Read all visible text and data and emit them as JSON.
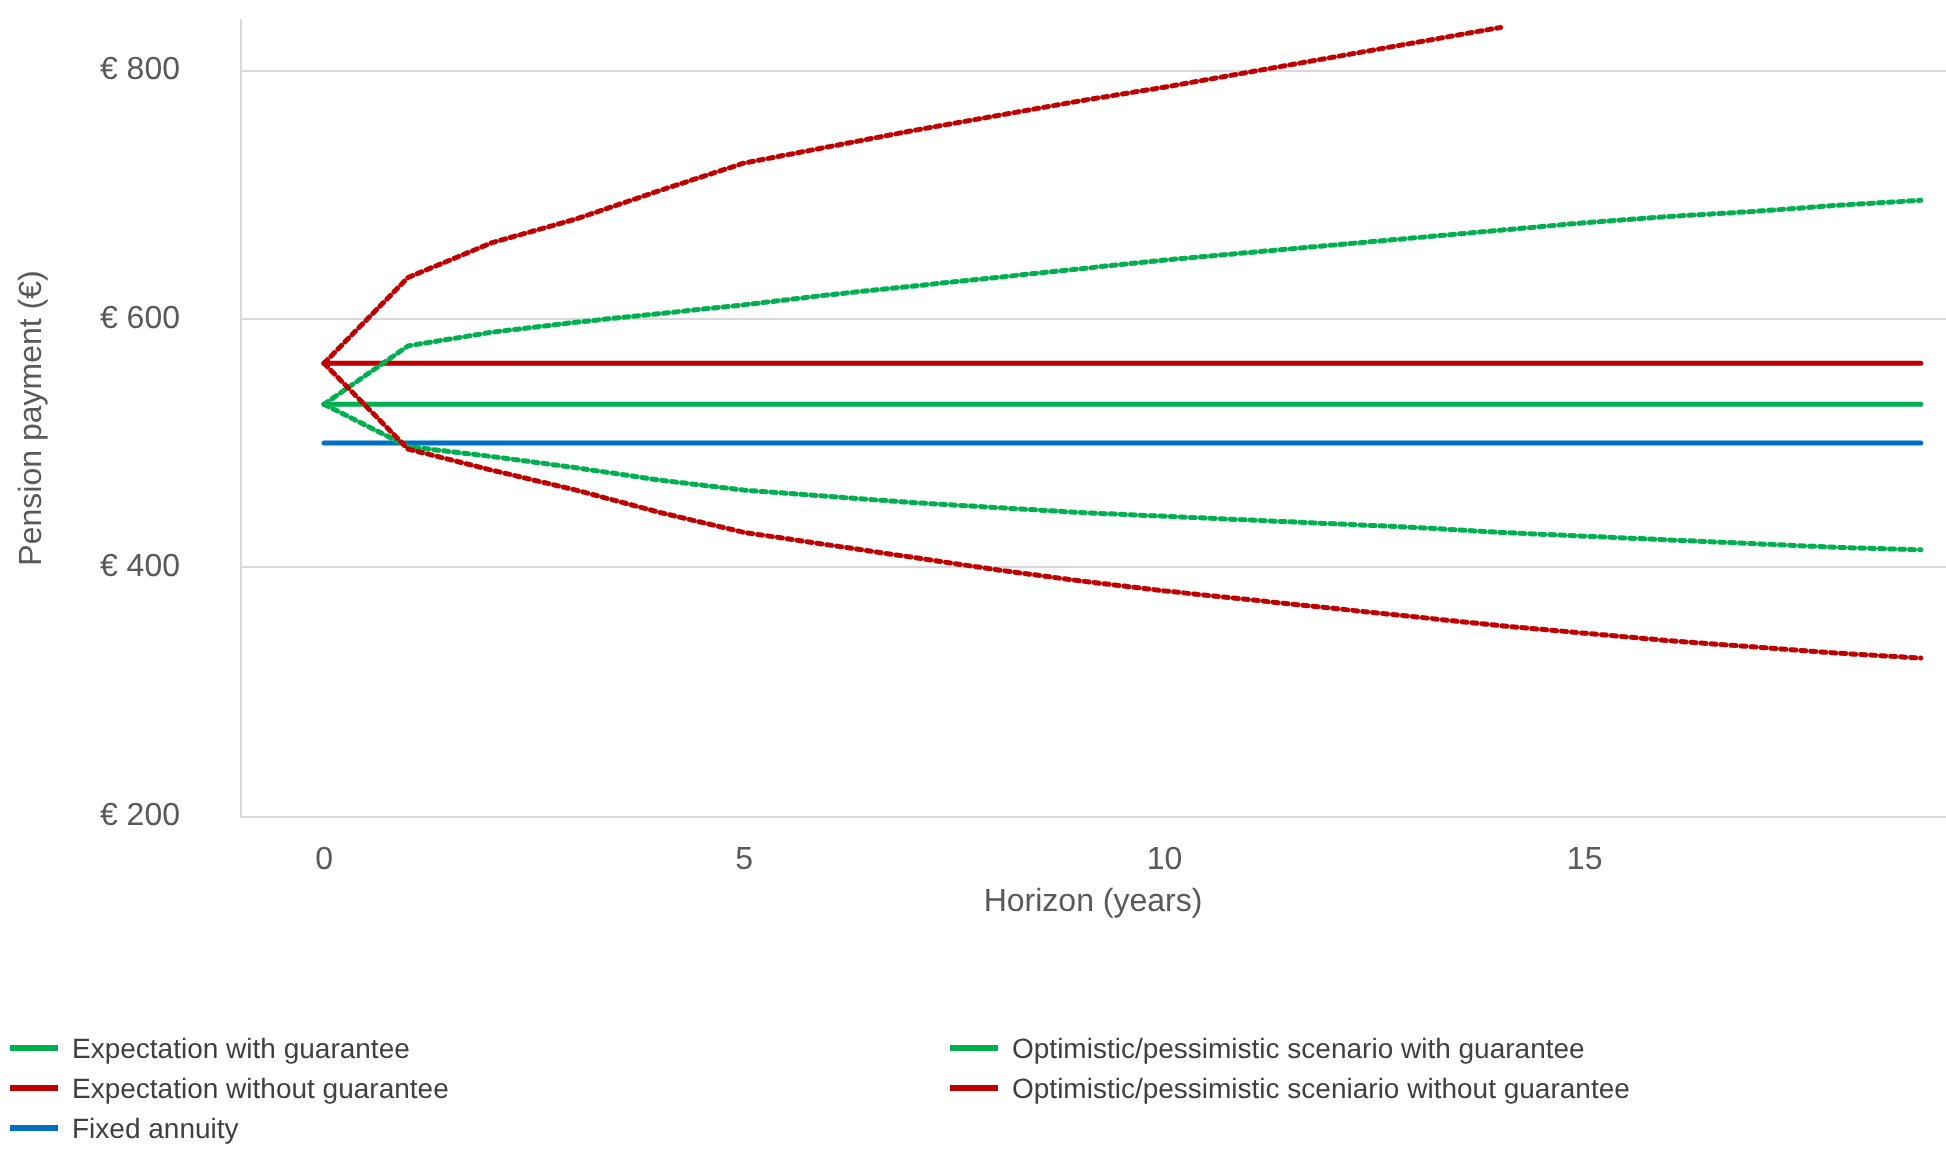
{
  "chart_data": {
    "type": "line",
    "xlabel": "Horizon (years)",
    "ylabel": "Pension payment (€)",
    "x": [
      0,
      1,
      2,
      3,
      4,
      5,
      6,
      7,
      8,
      9,
      10,
      11,
      12,
      13,
      14,
      15,
      16,
      17,
      18,
      19
    ],
    "xlim": [
      -1,
      19.3
    ],
    "xticks": [
      0,
      5,
      10,
      15
    ],
    "ylim": [
      200,
      840
    ],
    "yticks": [
      {
        "value": 200,
        "label": "€ 200"
      },
      {
        "value": 400,
        "label": "€ 400"
      },
      {
        "value": 600,
        "label": "€ 600"
      },
      {
        "value": 800,
        "label": "€ 800"
      }
    ],
    "grid": "y",
    "legend": "bottom",
    "marker": "none",
    "series": [
      {
        "name": "Expectation with guarantee",
        "color": "#00b050",
        "line_style": "solid",
        "values": [
          531,
          531,
          531,
          531,
          531,
          531,
          531,
          531,
          531,
          531,
          531,
          531,
          531,
          531,
          531,
          531,
          531,
          531,
          531,
          531
        ]
      },
      {
        "name": "Expectation without guarantee",
        "color": "#c00000",
        "line_style": "solid",
        "values": [
          564,
          564,
          564,
          564,
          564,
          564,
          564,
          564,
          564,
          564,
          564,
          564,
          564,
          564,
          564,
          564,
          564,
          564,
          564,
          564
        ]
      },
      {
        "name": "Fixed annuity",
        "color": "#0070c0",
        "line_style": "solid",
        "values": [
          500,
          500,
          500,
          500,
          500,
          500,
          500,
          500,
          500,
          500,
          500,
          500,
          500,
          500,
          500,
          500,
          500,
          500,
          500,
          500
        ]
      },
      {
        "name": "Optimistic/pessimistic scenario with guarantee",
        "color": "#00b050",
        "line_style": "dotted",
        "values": [
          531,
          578,
          589,
          597,
          604,
          611,
          619,
          626,
          633,
          640,
          647,
          653,
          659,
          665,
          671,
          677,
          682,
          686,
          691,
          695
        ]
      },
      {
        "color": "#00b050",
        "line_style": "dotted",
        "values": [
          531,
          497,
          489,
          480,
          470,
          462,
          457,
          452,
          448,
          444,
          441,
          438,
          435,
          432,
          428,
          425,
          422,
          419,
          416,
          414
        ]
      },
      {
        "name": "Optimistic/pessimistic sceniario without guarantee",
        "color": "#c00000",
        "line_style": "dotted",
        "values": [
          564,
          633,
          661,
          680,
          703,
          725,
          738,
          751,
          763,
          775,
          786,
          798,
          810,
          822,
          834,
          null,
          null,
          null,
          null,
          null
        ]
      },
      {
        "color": "#c00000",
        "line_style": "dotted",
        "values": [
          564,
          495,
          478,
          462,
          444,
          428,
          418,
          408,
          398,
          389,
          381,
          374,
          367,
          360,
          353,
          347,
          341,
          336,
          331,
          327
        ]
      }
    ]
  }
}
